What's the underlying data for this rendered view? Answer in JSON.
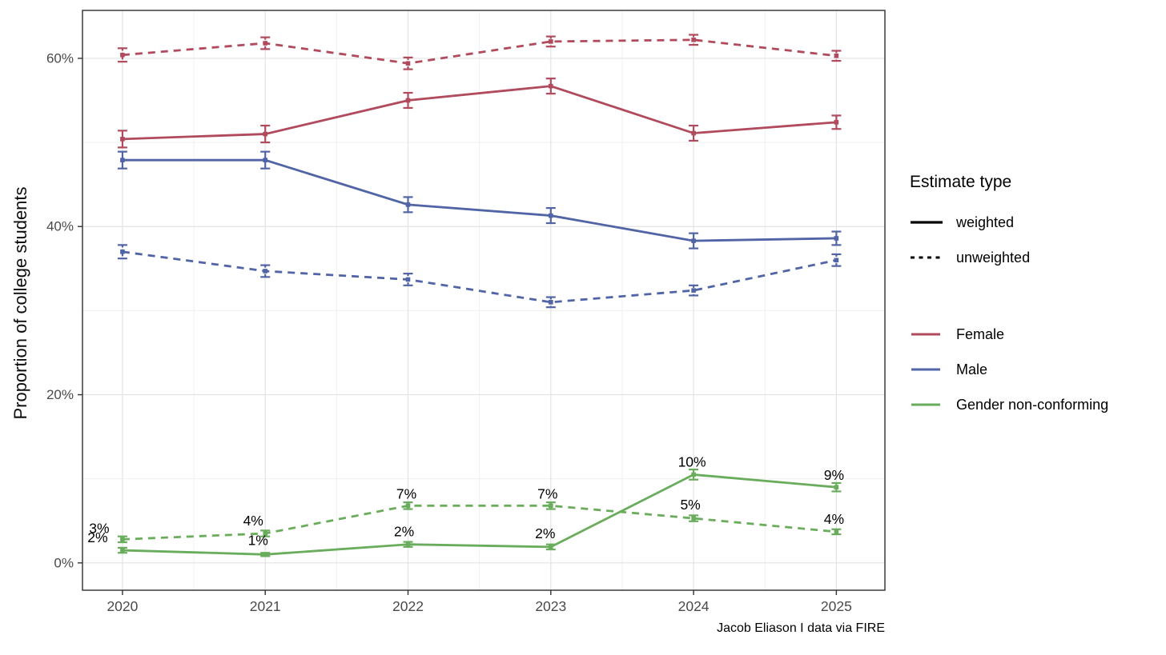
{
  "figure": {
    "y_axis_title": "Proportion of college students",
    "caption": "Jacob Eliason I data via FIRE"
  },
  "legend": {
    "linetype": {
      "title": "Estimate type",
      "items": [
        {
          "label": "weighted",
          "dash": "solid"
        },
        {
          "label": "unweighted",
          "dash": "dashed"
        }
      ]
    },
    "color": {
      "items": [
        {
          "label": "Female",
          "color": "#b14a5d"
        },
        {
          "label": "Male",
          "color": "#5164a6"
        },
        {
          "label": "Gender non-conforming",
          "color": "#69ad5c"
        }
      ]
    }
  },
  "chart_data": {
    "type": "line",
    "title": "",
    "xlabel": "",
    "ylabel": "Proportion of college students",
    "caption": "Jacob Eliason I data via FIRE",
    "grid": "on",
    "legend_position": "right",
    "x": [
      2020,
      2021,
      2022,
      2023,
      2024,
      2025
    ],
    "x_tick_labels": [
      "2020",
      "2021",
      "2022",
      "2023",
      "2024",
      "2025"
    ],
    "y_ticks": [
      {
        "value": 0,
        "label": "0%"
      },
      {
        "value": 20,
        "label": "20%"
      },
      {
        "value": 40,
        "label": "40%"
      },
      {
        "value": 60,
        "label": "60%"
      }
    ],
    "y_minor": [
      10,
      30,
      50
    ],
    "xlim": [
      2019.72,
      2025.34
    ],
    "ylim": [
      -3.25,
      65.7
    ],
    "series": [
      {
        "name": "Female",
        "estimate": "unweighted",
        "color": "#b14a5d",
        "dash": "dashed",
        "values": [
          60.4,
          61.8,
          59.4,
          62.0,
          62.2,
          60.3
        ],
        "se": [
          0.8,
          0.7,
          0.7,
          0.6,
          0.6,
          0.6
        ]
      },
      {
        "name": "Female",
        "estimate": "weighted",
        "color": "#b14a5d",
        "dash": "solid",
        "values": [
          50.4,
          51.0,
          55.0,
          56.7,
          51.1,
          52.4
        ],
        "se": [
          1.0,
          1.0,
          0.9,
          0.9,
          0.9,
          0.8
        ]
      },
      {
        "name": "Male",
        "estimate": "weighted",
        "color": "#5164a6",
        "dash": "solid",
        "values": [
          47.9,
          47.9,
          42.6,
          41.3,
          38.3,
          38.6
        ],
        "se": [
          1.0,
          1.0,
          0.9,
          0.9,
          0.9,
          0.8
        ]
      },
      {
        "name": "Male",
        "estimate": "unweighted",
        "color": "#5164a6",
        "dash": "dashed",
        "values": [
          37.0,
          34.7,
          33.7,
          31.0,
          32.4,
          36.0
        ],
        "se": [
          0.8,
          0.7,
          0.7,
          0.6,
          0.6,
          0.7
        ]
      },
      {
        "name": "Gender non-conforming",
        "estimate": "unweighted",
        "color": "#69ad5c",
        "dash": "dashed",
        "values": [
          2.8,
          3.5,
          6.8,
          6.8,
          5.3,
          3.7
        ],
        "se": [
          0.35,
          0.35,
          0.4,
          0.4,
          0.35,
          0.3
        ],
        "point_labels": [
          {
            "text": "3%",
            "dx": -29,
            "dy": -14
          },
          {
            "text": "4%",
            "dx": -15,
            "dy": -16
          },
          {
            "text": "7%",
            "dx": -2,
            "dy": -15
          },
          {
            "text": "7%",
            "dx": -4,
            "dy": -15
          },
          {
            "text": "5%",
            "dx": -4,
            "dy": -17
          },
          {
            "text": "4%",
            "dx": -3,
            "dy": -16
          }
        ]
      },
      {
        "name": "Gender non-conforming",
        "estimate": "weighted",
        "color": "#69ad5c",
        "dash": "solid",
        "values": [
          1.5,
          1.0,
          2.2,
          1.9,
          10.5,
          9.0
        ],
        "se": [
          0.3,
          0.2,
          0.3,
          0.3,
          0.6,
          0.5
        ],
        "point_labels": [
          {
            "text": "2%",
            "dx": -31,
            "dy": -16
          },
          {
            "text": "1%",
            "dx": -9,
            "dy": -18
          },
          {
            "text": "2%",
            "dx": -5,
            "dy": -16
          },
          {
            "text": "2%",
            "dx": -7,
            "dy": -17
          },
          {
            "text": "10%",
            "dx": -2,
            "dy": -16
          },
          {
            "text": "9%",
            "dx": -3,
            "dy": -15
          }
        ]
      }
    ],
    "style": {
      "grid_major_color": "#e3e3e3",
      "grid_minor_color": "#efefef",
      "panel_border_color": "#2e2e2e",
      "tick_color": "#333333",
      "tick_label_color": "#4a4a4a"
    }
  }
}
